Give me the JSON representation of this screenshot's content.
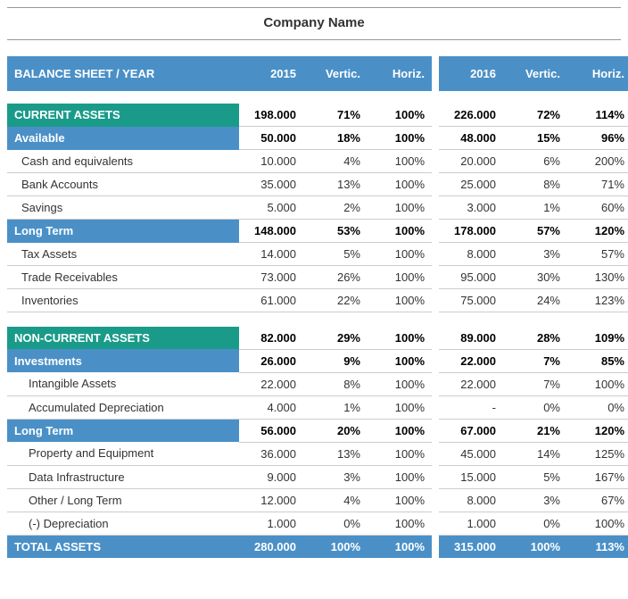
{
  "company_name": "Company Name",
  "header": {
    "title": "BALANCE SHEET / YEAR",
    "years": [
      "2015",
      "2016"
    ],
    "cols": [
      "Vertic.",
      "Horiz."
    ]
  },
  "colors": {
    "header_bg": "#4a90c7",
    "section_bg": "#1a9b8a",
    "sub_bg": "#4a90c7",
    "total_bg": "#4a90c7",
    "border": "#cccccc",
    "text": "#333333"
  },
  "sections": [
    {
      "type": "section",
      "label": "CURRENT ASSETS",
      "y1": {
        "val": "198.000",
        "v": "71%",
        "h": "100%"
      },
      "y2": {
        "val": "226.000",
        "v": "72%",
        "h": "114%"
      }
    },
    {
      "type": "sub",
      "label": "Available",
      "y1": {
        "val": "50.000",
        "v": "18%",
        "h": "100%"
      },
      "y2": {
        "val": "48.000",
        "v": "15%",
        "h": "96%"
      }
    },
    {
      "type": "row",
      "indent": 1,
      "label": "Cash and equivalents",
      "y1": {
        "val": "10.000",
        "v": "4%",
        "h": "100%"
      },
      "y2": {
        "val": "20.000",
        "v": "6%",
        "h": "200%"
      }
    },
    {
      "type": "row",
      "indent": 1,
      "label": "Bank Accounts",
      "y1": {
        "val": "35.000",
        "v": "13%",
        "h": "100%"
      },
      "y2": {
        "val": "25.000",
        "v": "8%",
        "h": "71%"
      }
    },
    {
      "type": "row",
      "indent": 1,
      "label": "Savings",
      "y1": {
        "val": "5.000",
        "v": "2%",
        "h": "100%"
      },
      "y2": {
        "val": "3.000",
        "v": "1%",
        "h": "60%"
      }
    },
    {
      "type": "sub",
      "label": "Long Term",
      "y1": {
        "val": "148.000",
        "v": "53%",
        "h": "100%"
      },
      "y2": {
        "val": "178.000",
        "v": "57%",
        "h": "120%"
      }
    },
    {
      "type": "row",
      "indent": 1,
      "label": "Tax Assets",
      "y1": {
        "val": "14.000",
        "v": "5%",
        "h": "100%"
      },
      "y2": {
        "val": "8.000",
        "v": "3%",
        "h": "57%"
      }
    },
    {
      "type": "row",
      "indent": 1,
      "label": "Trade Receivables",
      "y1": {
        "val": "73.000",
        "v": "26%",
        "h": "100%"
      },
      "y2": {
        "val": "95.000",
        "v": "30%",
        "h": "130%"
      }
    },
    {
      "type": "row",
      "indent": 1,
      "label": "Inventories",
      "y1": {
        "val": "61.000",
        "v": "22%",
        "h": "100%"
      },
      "y2": {
        "val": "75.000",
        "v": "24%",
        "h": "123%"
      }
    },
    {
      "type": "blank"
    },
    {
      "type": "section",
      "label": "NON-CURRENT ASSETS",
      "y1": {
        "val": "82.000",
        "v": "29%",
        "h": "100%"
      },
      "y2": {
        "val": "89.000",
        "v": "28%",
        "h": "109%"
      }
    },
    {
      "type": "sub",
      "label": "Investments",
      "y1": {
        "val": "26.000",
        "v": "9%",
        "h": "100%"
      },
      "y2": {
        "val": "22.000",
        "v": "7%",
        "h": "85%"
      }
    },
    {
      "type": "row",
      "indent": 2,
      "label": "Intangible Assets",
      "y1": {
        "val": "22.000",
        "v": "8%",
        "h": "100%"
      },
      "y2": {
        "val": "22.000",
        "v": "7%",
        "h": "100%"
      }
    },
    {
      "type": "row",
      "indent": 2,
      "label": "Accumulated Depreciation",
      "y1": {
        "val": "4.000",
        "v": "1%",
        "h": "100%"
      },
      "y2": {
        "val": "-",
        "v": "0%",
        "h": "0%"
      }
    },
    {
      "type": "sub",
      "label": "Long Term",
      "y1": {
        "val": "56.000",
        "v": "20%",
        "h": "100%"
      },
      "y2": {
        "val": "67.000",
        "v": "21%",
        "h": "120%"
      }
    },
    {
      "type": "row",
      "indent": 2,
      "label": "Property and Equipment",
      "y1": {
        "val": "36.000",
        "v": "13%",
        "h": "100%"
      },
      "y2": {
        "val": "45.000",
        "v": "14%",
        "h": "125%"
      }
    },
    {
      "type": "row",
      "indent": 2,
      "label": "Data Infrastructure",
      "y1": {
        "val": "9.000",
        "v": "3%",
        "h": "100%"
      },
      "y2": {
        "val": "15.000",
        "v": "5%",
        "h": "167%"
      }
    },
    {
      "type": "row",
      "indent": 2,
      "label": "Other / Long Term",
      "y1": {
        "val": "12.000",
        "v": "4%",
        "h": "100%"
      },
      "y2": {
        "val": "8.000",
        "v": "3%",
        "h": "67%"
      }
    },
    {
      "type": "row",
      "indent": 2,
      "label": "(-) Depreciation",
      "y1": {
        "val": "1.000",
        "v": "0%",
        "h": "100%"
      },
      "y2": {
        "val": "1.000",
        "v": "0%",
        "h": "100%"
      }
    },
    {
      "type": "total",
      "label": "TOTAL ASSETS",
      "y1": {
        "val": "280.000",
        "v": "100%",
        "h": "100%"
      },
      "y2": {
        "val": "315.000",
        "v": "100%",
        "h": "113%"
      }
    }
  ]
}
